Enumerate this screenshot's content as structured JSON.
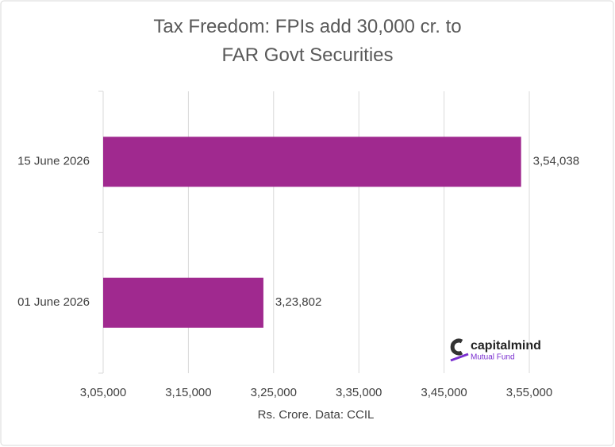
{
  "chart_data": {
    "type": "bar",
    "orientation": "horizontal",
    "title": "Tax Freedom: FPIs add 30,000 cr. to FAR Govt Securities",
    "x_label": "Rs. Crore. Data: CCIL",
    "categories": [
      "15 June 2026",
      "01 June 2026"
    ],
    "values": [
      354038,
      323802
    ],
    "value_labels": [
      "3,54,038",
      "3,23,802"
    ],
    "color": "#a0298f",
    "xlim": [
      305000,
      355000
    ],
    "xticks": [
      {
        "value": 305000,
        "label": "3,05,000"
      },
      {
        "value": 315000,
        "label": "3,15,000"
      },
      {
        "value": 325000,
        "label": "3,25,000"
      },
      {
        "value": 335000,
        "label": "3,35,000"
      },
      {
        "value": 345000,
        "label": "3,45,000"
      },
      {
        "value": 355000,
        "label": "3,55,000"
      }
    ],
    "grid": true
  },
  "logo": {
    "name": "capitalmind",
    "tagline": "Mutual Fund"
  }
}
